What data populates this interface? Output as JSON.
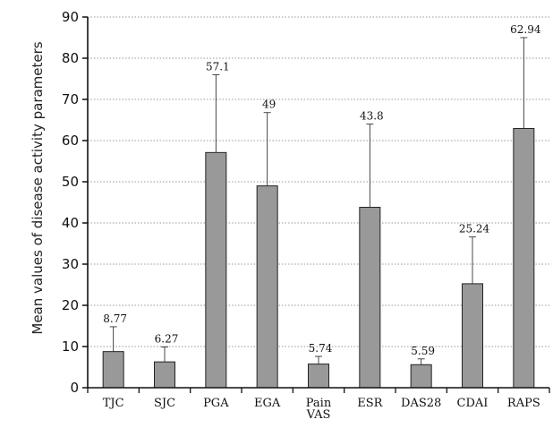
{
  "chart_data": {
    "type": "bar",
    "title": "",
    "xlabel": "",
    "ylabel": "Mean values of disease activity parameters",
    "ylim": [
      0,
      90
    ],
    "yticks": [
      0,
      10,
      20,
      30,
      40,
      50,
      60,
      70,
      80,
      90
    ],
    "grid": true,
    "legend": "none",
    "categories": [
      "TJC",
      "SJC",
      "PGA",
      "EGA",
      "Pain\nVAS",
      "ESR",
      "DAS28",
      "CDAI",
      "RAPS"
    ],
    "values": [
      8.77,
      6.27,
      57.1,
      49,
      5.74,
      43.8,
      5.59,
      25.24,
      62.94
    ],
    "error_upper": [
      14.8,
      9.9,
      76.0,
      66.8,
      7.6,
      64.0,
      7.0,
      36.6,
      85.0
    ],
    "data_labels": [
      "8.77",
      "6.27",
      "57.1",
      "49",
      "5.74",
      "43.8",
      "5.59",
      "25.24",
      "62.94"
    ],
    "colors": {
      "bar_fill": "#999999",
      "bar_stroke": "#222222",
      "axis": "#111111",
      "grid": "#777777"
    }
  }
}
